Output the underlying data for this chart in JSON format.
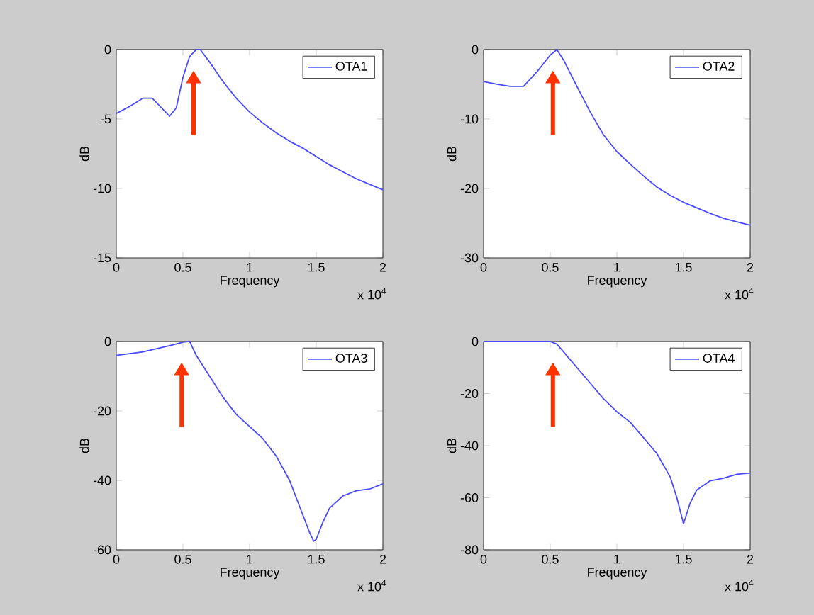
{
  "chart_data": [
    {
      "type": "line",
      "xlabel": "Frequency",
      "ylabel": "dB",
      "annotations": [
        "x 10$^{4}$"
      ],
      "legend": "top right",
      "xlim": [
        0,
        2
      ],
      "ylim": [
        -15,
        0
      ],
      "xticks": [
        0,
        0.5,
        1,
        1.5,
        2
      ],
      "yticks": [
        -15,
        -10,
        -5,
        0
      ],
      "x": [
        0,
        0.1,
        0.2,
        0.27,
        0.35,
        0.4,
        0.45,
        0.5,
        0.55,
        0.6,
        0.63,
        0.7,
        0.8,
        0.9,
        1.0,
        1.1,
        1.2,
        1.3,
        1.4,
        1.5,
        1.6,
        1.7,
        1.8,
        1.9,
        2.0
      ],
      "series": [
        {
          "name": "OTA1",
          "color": "#4a4aff",
          "values": [
            -4.6,
            -4.1,
            -3.5,
            -3.5,
            -4.3,
            -4.8,
            -4.2,
            -2,
            -0.5,
            0,
            0,
            -0.9,
            -2.3,
            -3.5,
            -4.5,
            -5.3,
            -6.0,
            -6.6,
            -7.1,
            -7.7,
            -8.3,
            -8.8,
            -9.3,
            -9.7,
            -10.1
          ]
        }
      ]
    },
    {
      "type": "line",
      "xlabel": "Frequency",
      "ylabel": "dB",
      "annotations": [
        "x 10$^{4}$"
      ],
      "legend": "top right",
      "xlim": [
        0,
        2
      ],
      "ylim": [
        -30,
        0
      ],
      "xticks": [
        0,
        0.5,
        1,
        1.5,
        2
      ],
      "yticks": [
        -30,
        -20,
        -10,
        0
      ],
      "x": [
        0,
        0.1,
        0.2,
        0.3,
        0.4,
        0.5,
        0.55,
        0.6,
        0.7,
        0.8,
        0.9,
        1.0,
        1.1,
        1.2,
        1.3,
        1.4,
        1.5,
        1.6,
        1.7,
        1.8,
        1.9,
        2.0
      ],
      "series": [
        {
          "name": "OTA2",
          "color": "#4a4aff",
          "values": [
            -4.6,
            -5.0,
            -5.3,
            -5.3,
            -3.2,
            -0.8,
            0,
            -1.5,
            -5.3,
            -9,
            -12.3,
            -14.7,
            -16.5,
            -18.2,
            -19.8,
            -21,
            -22,
            -22.8,
            -23.6,
            -24.3,
            -24.8,
            -25.3
          ]
        }
      ]
    },
    {
      "type": "line",
      "xlabel": "Frequency",
      "ylabel": "dB",
      "annotations": [
        "x 10$^{4}$"
      ],
      "legend": "top right",
      "xlim": [
        0,
        2
      ],
      "ylim": [
        -60,
        0
      ],
      "xticks": [
        0,
        0.5,
        1,
        1.5,
        2
      ],
      "yticks": [
        -60,
        -40,
        -20,
        0
      ],
      "x": [
        0,
        0.2,
        0.4,
        0.5,
        0.55,
        0.6,
        0.7,
        0.8,
        0.9,
        1.0,
        1.1,
        1.2,
        1.3,
        1.4,
        1.45,
        1.48,
        1.5,
        1.55,
        1.6,
        1.7,
        1.8,
        1.9,
        2.0
      ],
      "series": [
        {
          "name": "OTA3",
          "color": "#4a4aff",
          "values": [
            -4,
            -3,
            -1.2,
            -0.2,
            0,
            -4,
            -10,
            -16,
            -21,
            -24.5,
            -28,
            -33,
            -40,
            -50,
            -55,
            -57.5,
            -57,
            -52,
            -48,
            -44.5,
            -43,
            -42.5,
            -41
          ]
        }
      ]
    },
    {
      "type": "line",
      "xlabel": "Frequency",
      "ylabel": "dB",
      "annotations": [
        "x 10$^{4}$"
      ],
      "legend": "top right",
      "xlim": [
        0,
        2
      ],
      "ylim": [
        -80,
        0
      ],
      "xticks": [
        0,
        0.5,
        1,
        1.5,
        2
      ],
      "yticks": [
        -80,
        -60,
        -40,
        -20,
        0
      ],
      "x": [
        0,
        0.3,
        0.5,
        0.55,
        0.6,
        0.7,
        0.8,
        0.9,
        1.0,
        1.1,
        1.2,
        1.3,
        1.4,
        1.45,
        1.5,
        1.55,
        1.6,
        1.7,
        1.8,
        1.9,
        2.0
      ],
      "series": [
        {
          "name": "OTA4",
          "color": "#4a4aff",
          "values": [
            0,
            0,
            0,
            -1,
            -4,
            -10,
            -16,
            -22,
            -27,
            -31,
            -37,
            -43,
            -52,
            -60,
            -70,
            -62,
            -57,
            -53.5,
            -52.5,
            -51,
            -50.5
          ]
        }
      ]
    }
  ]
}
